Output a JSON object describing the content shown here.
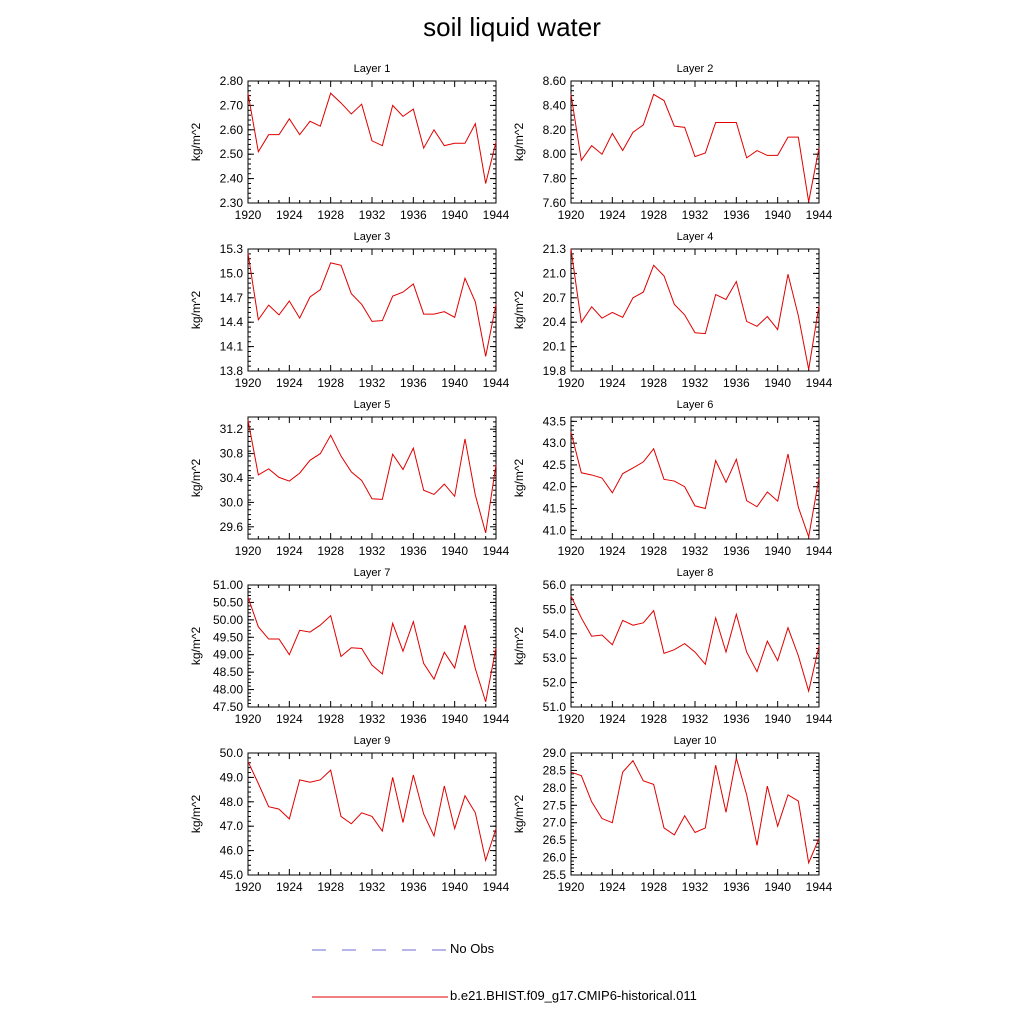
{
  "title": "soil liquid water",
  "legend": {
    "obs_label": "No Obs",
    "model_label": "b.e21.BHIST.f09_g17.CMIP6-historical.011",
    "obs_color": "#6d6dd4",
    "model_color": "#e00000"
  },
  "chart_data": [
    {
      "type": "line",
      "title": "Layer 1",
      "ylabel": "kg/m^2",
      "xlim": [
        1920,
        1944
      ],
      "ylim": [
        2.3,
        2.8
      ],
      "xticks": [
        "1920",
        "1924",
        "1928",
        "1932",
        "1936",
        "1940",
        "1944"
      ],
      "yticks": [
        "2.30",
        "2.40",
        "2.50",
        "2.60",
        "2.70",
        "2.80"
      ],
      "x": [
        1920,
        1921,
        1922,
        1923,
        1924,
        1925,
        1926,
        1927,
        1928,
        1929,
        1930,
        1931,
        1932,
        1933,
        1934,
        1935,
        1936,
        1937,
        1938,
        1939,
        1940,
        1941,
        1942,
        1943,
        1944
      ],
      "series": [
        {
          "name": "b.e21.BHIST.f09_g17.CMIP6-historical.011",
          "values": [
            2.75,
            2.51,
            2.58,
            2.58,
            2.645,
            2.58,
            2.635,
            2.615,
            2.75,
            2.71,
            2.665,
            2.705,
            2.555,
            2.535,
            2.7,
            2.655,
            2.685,
            2.525,
            2.6,
            2.535,
            2.545,
            2.545,
            2.625,
            2.38,
            2.55
          ]
        }
      ]
    },
    {
      "type": "line",
      "title": "Layer 2",
      "ylabel": "kg/m^2",
      "xlim": [
        1920,
        1944
      ],
      "ylim": [
        7.6,
        8.6
      ],
      "xticks": [
        "1920",
        "1924",
        "1928",
        "1932",
        "1936",
        "1940",
        "1944"
      ],
      "yticks": [
        "7.60",
        "7.80",
        "8.00",
        "8.20",
        "8.40",
        "8.60"
      ],
      "x": [
        1920,
        1921,
        1922,
        1923,
        1924,
        1925,
        1926,
        1927,
        1928,
        1929,
        1930,
        1931,
        1932,
        1933,
        1934,
        1935,
        1936,
        1937,
        1938,
        1939,
        1940,
        1941,
        1942,
        1943,
        1944
      ],
      "series": [
        {
          "name": "b.e21.BHIST.f09_g17.CMIP6-historical.011",
          "values": [
            8.49,
            7.95,
            8.07,
            8.0,
            8.17,
            8.03,
            8.18,
            8.24,
            8.49,
            8.44,
            8.23,
            8.22,
            7.98,
            8.01,
            8.26,
            8.26,
            8.26,
            7.97,
            8.03,
            7.99,
            7.99,
            8.14,
            8.14,
            7.61,
            8.05
          ]
        }
      ]
    },
    {
      "type": "line",
      "title": "Layer 3",
      "ylabel": "kg/m^2",
      "xlim": [
        1920,
        1944
      ],
      "ylim": [
        13.8,
        15.3
      ],
      "xticks": [
        "1920",
        "1924",
        "1928",
        "1932",
        "1936",
        "1940",
        "1944"
      ],
      "yticks": [
        "13.8",
        "14.1",
        "14.4",
        "14.7",
        "15.0",
        "15.3"
      ],
      "x": [
        1920,
        1921,
        1922,
        1923,
        1924,
        1925,
        1926,
        1927,
        1928,
        1929,
        1930,
        1931,
        1932,
        1933,
        1934,
        1935,
        1936,
        1937,
        1938,
        1939,
        1940,
        1941,
        1942,
        1943,
        1944
      ],
      "series": [
        {
          "name": "b.e21.BHIST.f09_g17.CMIP6-historical.011",
          "values": [
            15.25,
            14.43,
            14.61,
            14.49,
            14.66,
            14.45,
            14.71,
            14.8,
            15.13,
            15.1,
            14.75,
            14.62,
            14.41,
            14.42,
            14.72,
            14.77,
            14.87,
            14.5,
            14.5,
            14.53,
            14.46,
            14.94,
            14.65,
            13.98,
            14.62
          ]
        }
      ]
    },
    {
      "type": "line",
      "title": "Layer 4",
      "ylabel": "kg/m^2",
      "xlim": [
        1920,
        1944
      ],
      "ylim": [
        19.8,
        21.3
      ],
      "xticks": [
        "1920",
        "1924",
        "1928",
        "1932",
        "1936",
        "1940",
        "1944"
      ],
      "yticks": [
        "19.8",
        "20.1",
        "20.4",
        "20.7",
        "21.0",
        "21.3"
      ],
      "x": [
        1920,
        1921,
        1922,
        1923,
        1924,
        1925,
        1926,
        1927,
        1928,
        1929,
        1930,
        1931,
        1932,
        1933,
        1934,
        1935,
        1936,
        1937,
        1938,
        1939,
        1940,
        1941,
        1942,
        1943,
        1944
      ],
      "series": [
        {
          "name": "b.e21.BHIST.f09_g17.CMIP6-historical.011",
          "values": [
            21.3,
            20.4,
            20.59,
            20.45,
            20.52,
            20.46,
            20.7,
            20.77,
            21.1,
            20.97,
            20.62,
            20.49,
            20.27,
            20.26,
            20.74,
            20.68,
            20.9,
            20.41,
            20.35,
            20.47,
            20.31,
            20.99,
            20.48,
            19.82,
            20.6
          ]
        }
      ]
    },
    {
      "type": "line",
      "title": "Layer 5",
      "ylabel": "kg/m^2",
      "xlim": [
        1920,
        1944
      ],
      "ylim": [
        29.4,
        31.4
      ],
      "xticks": [
        "1920",
        "1924",
        "1928",
        "1932",
        "1936",
        "1940",
        "1944"
      ],
      "yticks": [
        "29.6",
        "30.0",
        "30.4",
        "30.8",
        "31.2"
      ],
      "x": [
        1920,
        1921,
        1922,
        1923,
        1924,
        1925,
        1926,
        1927,
        1928,
        1929,
        1930,
        1931,
        1932,
        1933,
        1934,
        1935,
        1936,
        1937,
        1938,
        1939,
        1940,
        1941,
        1942,
        1943,
        1944
      ],
      "series": [
        {
          "name": "b.e21.BHIST.f09_g17.CMIP6-historical.011",
          "values": [
            31.35,
            30.45,
            30.55,
            30.41,
            30.35,
            30.48,
            30.69,
            30.8,
            31.1,
            30.76,
            30.5,
            30.36,
            30.06,
            30.05,
            30.79,
            30.54,
            30.89,
            30.2,
            30.13,
            30.3,
            30.1,
            31.04,
            30.12,
            29.5,
            30.62
          ]
        }
      ]
    },
    {
      "type": "line",
      "title": "Layer 6",
      "ylabel": "kg/m^2",
      "xlim": [
        1920,
        1944
      ],
      "ylim": [
        40.8,
        43.6
      ],
      "xticks": [
        "1920",
        "1924",
        "1928",
        "1932",
        "1936",
        "1940",
        "1944"
      ],
      "yticks": [
        "41.0",
        "41.5",
        "42.0",
        "42.5",
        "43.0",
        "43.5"
      ],
      "x": [
        1920,
        1921,
        1922,
        1923,
        1924,
        1925,
        1926,
        1927,
        1928,
        1929,
        1930,
        1931,
        1932,
        1933,
        1934,
        1935,
        1936,
        1937,
        1938,
        1939,
        1940,
        1941,
        1942,
        1943,
        1944
      ],
      "series": [
        {
          "name": "b.e21.BHIST.f09_g17.CMIP6-historical.011",
          "values": [
            43.25,
            42.32,
            42.27,
            42.2,
            41.86,
            42.3,
            42.43,
            42.57,
            42.87,
            42.17,
            42.13,
            42.0,
            41.56,
            41.5,
            42.6,
            42.1,
            42.63,
            41.68,
            41.54,
            41.88,
            41.67,
            42.75,
            41.53,
            40.85,
            42.2
          ]
        }
      ]
    },
    {
      "type": "line",
      "title": "Layer 7",
      "ylabel": "kg/m^2",
      "xlim": [
        1920,
        1944
      ],
      "ylim": [
        47.5,
        51.0
      ],
      "xticks": [
        "1920",
        "1924",
        "1928",
        "1932",
        "1936",
        "1940",
        "1944"
      ],
      "yticks": [
        "47.50",
        "48.00",
        "48.50",
        "49.00",
        "49.50",
        "50.00",
        "50.50",
        "51.00"
      ],
      "x": [
        1920,
        1921,
        1922,
        1923,
        1924,
        1925,
        1926,
        1927,
        1928,
        1929,
        1930,
        1931,
        1932,
        1933,
        1934,
        1935,
        1936,
        1937,
        1938,
        1939,
        1940,
        1941,
        1942,
        1943,
        1944
      ],
      "series": [
        {
          "name": "b.e21.BHIST.f09_g17.CMIP6-historical.011",
          "values": [
            50.65,
            49.8,
            49.45,
            49.45,
            49.0,
            49.7,
            49.65,
            49.85,
            50.12,
            48.95,
            49.2,
            49.18,
            48.7,
            48.45,
            49.9,
            49.1,
            49.95,
            48.75,
            48.3,
            49.07,
            48.62,
            49.85,
            48.6,
            47.65,
            49.2
          ]
        }
      ]
    },
    {
      "type": "line",
      "title": "Layer 8",
      "ylabel": "kg/m^2",
      "xlim": [
        1920,
        1944
      ],
      "ylim": [
        51.0,
        56.0
      ],
      "xticks": [
        "1920",
        "1924",
        "1928",
        "1932",
        "1936",
        "1940",
        "1944"
      ],
      "yticks": [
        "51.0",
        "52.0",
        "53.0",
        "54.0",
        "55.0",
        "56.0"
      ],
      "x": [
        1920,
        1921,
        1922,
        1923,
        1924,
        1925,
        1926,
        1927,
        1928,
        1929,
        1930,
        1931,
        1932,
        1933,
        1934,
        1935,
        1936,
        1937,
        1938,
        1939,
        1940,
        1941,
        1942,
        1943,
        1944
      ],
      "series": [
        {
          "name": "b.e21.BHIST.f09_g17.CMIP6-historical.011",
          "values": [
            55.55,
            54.65,
            53.9,
            53.95,
            53.55,
            54.55,
            54.35,
            54.45,
            54.95,
            53.2,
            53.35,
            53.6,
            53.25,
            52.75,
            54.65,
            53.25,
            54.8,
            53.25,
            52.45,
            53.7,
            52.9,
            54.25,
            53.1,
            51.65,
            53.5
          ]
        }
      ]
    },
    {
      "type": "line",
      "title": "Layer 9",
      "ylabel": "kg/m^2",
      "xlim": [
        1920,
        1944
      ],
      "ylim": [
        45.0,
        50.0
      ],
      "xticks": [
        "1920",
        "1924",
        "1928",
        "1932",
        "1936",
        "1940",
        "1944"
      ],
      "yticks": [
        "45.0",
        "46.0",
        "47.0",
        "48.0",
        "49.0",
        "50.0"
      ],
      "x": [
        1920,
        1921,
        1922,
        1923,
        1924,
        1925,
        1926,
        1927,
        1928,
        1929,
        1930,
        1931,
        1932,
        1933,
        1934,
        1935,
        1936,
        1937,
        1938,
        1939,
        1940,
        1941,
        1942,
        1943,
        1944
      ],
      "series": [
        {
          "name": "b.e21.BHIST.f09_g17.CMIP6-historical.011",
          "values": [
            49.65,
            48.75,
            47.8,
            47.7,
            47.3,
            48.9,
            48.8,
            48.9,
            49.3,
            47.4,
            47.1,
            47.55,
            47.4,
            46.8,
            49.0,
            47.15,
            49.1,
            47.5,
            46.6,
            48.65,
            46.9,
            48.25,
            47.55,
            45.6,
            46.9
          ]
        }
      ]
    },
    {
      "type": "line",
      "title": "Layer 10",
      "ylabel": "kg/m^2",
      "xlim": [
        1920,
        1944
      ],
      "ylim": [
        25.5,
        29.0
      ],
      "xticks": [
        "1920",
        "1924",
        "1928",
        "1932",
        "1936",
        "1940",
        "1944"
      ],
      "yticks": [
        "25.5",
        "26.0",
        "26.5",
        "27.0",
        "27.5",
        "28.0",
        "28.5",
        "29.0"
      ],
      "x": [
        1920,
        1921,
        1922,
        1923,
        1924,
        1925,
        1926,
        1927,
        1928,
        1929,
        1930,
        1931,
        1932,
        1933,
        1934,
        1935,
        1936,
        1937,
        1938,
        1939,
        1940,
        1941,
        1942,
        1943,
        1944
      ],
      "series": [
        {
          "name": "b.e21.BHIST.f09_g17.CMIP6-historical.011",
          "values": [
            28.45,
            28.35,
            27.6,
            27.12,
            27.0,
            28.45,
            28.78,
            28.2,
            28.1,
            26.85,
            26.65,
            27.2,
            26.72,
            26.85,
            28.65,
            27.3,
            28.85,
            27.8,
            26.35,
            28.05,
            26.9,
            27.8,
            27.62,
            25.85,
            26.55
          ]
        }
      ]
    }
  ]
}
